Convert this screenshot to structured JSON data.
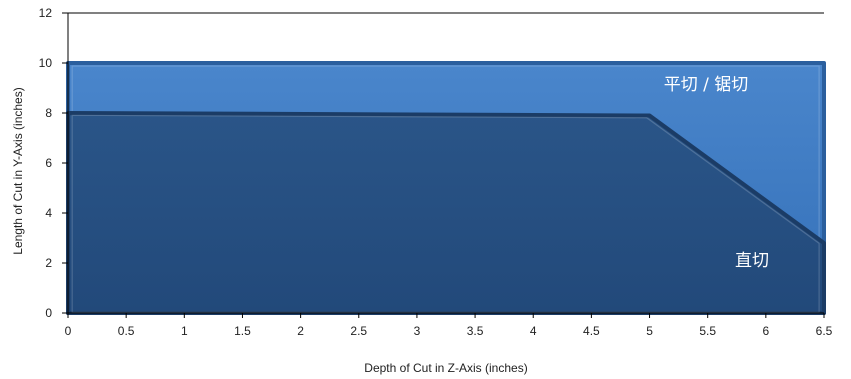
{
  "chart_data": {
    "type": "area",
    "title": "",
    "xlabel": "Depth of Cut in Z-Axis (inches)",
    "ylabel": "Length of Cut in Y-Axis (inches)",
    "xlim": [
      0,
      6.5
    ],
    "ylim": [
      0,
      12
    ],
    "x_ticks": [
      "0",
      "0.5",
      "1",
      "1.5",
      "2",
      "2.5",
      "3",
      "3.5",
      "4",
      "4.5",
      "5",
      "5.5",
      "6",
      "6.5"
    ],
    "y_ticks": [
      "0",
      "2",
      "4",
      "6",
      "8",
      "10",
      "12"
    ],
    "grid": false,
    "series": [
      {
        "name": "平切 / 锯切",
        "color": "#3a78c2",
        "points": [
          {
            "x": 0,
            "y": 10
          },
          {
            "x": 5,
            "y": 10
          },
          {
            "x": 6.5,
            "y": 10
          },
          {
            "x": 6.5,
            "y": 0
          },
          {
            "x": 0,
            "y": 0
          }
        ]
      },
      {
        "name": "直切",
        "color": "#264e80",
        "points": [
          {
            "x": 0,
            "y": 8
          },
          {
            "x": 5,
            "y": 7.9
          },
          {
            "x": 6.5,
            "y": 2.8
          },
          {
            "x": 6.5,
            "y": 0
          },
          {
            "x": 0,
            "y": 0
          }
        ]
      }
    ]
  }
}
